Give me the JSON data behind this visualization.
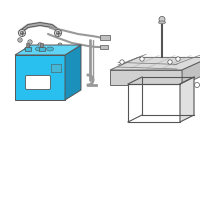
{
  "bg_color": "#ffffff",
  "battery_color": "#29c0ef",
  "battery_dark": "#1a90bb",
  "battery_top": "#60d4f5",
  "battery_top_detail": "#45b8d8",
  "line_color": "#999999",
  "dark_line": "#555555",
  "mid_line": "#777777",
  "fig_size": [
    2.0,
    2.0
  ],
  "dpi": 100
}
